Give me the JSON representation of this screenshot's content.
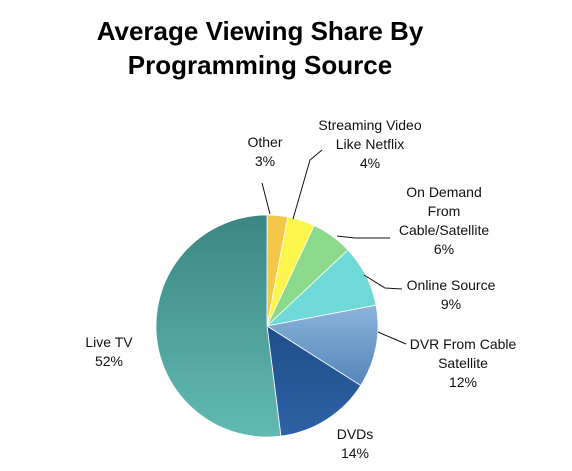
{
  "chart_data": {
    "type": "pie",
    "title": "Average Viewing Share By\nProgramming Source",
    "slices": [
      {
        "label": "Other",
        "value": 3,
        "display": "3%",
        "color": "#F3C74A",
        "label_lines": [
          "Other",
          "3%"
        ]
      },
      {
        "label": "Streaming Video Like Netflix",
        "value": 4,
        "display": "4%",
        "color": "#FCF54C",
        "label_lines": [
          "Streaming Video",
          "Like Netflix",
          "4%"
        ]
      },
      {
        "label": "On Demand From Cable/Satellite",
        "value": 6,
        "display": "6%",
        "color": "#8BD98A",
        "label_lines": [
          "On Demand",
          "From",
          "Cable/Satellite",
          "6%"
        ]
      },
      {
        "label": "Online Source",
        "value": 9,
        "display": "9%",
        "color": "#6ED9D6",
        "label_lines": [
          "Online Source",
          "9%"
        ]
      },
      {
        "label": "DVR From Cable Satellite",
        "value": 12,
        "display": "12%",
        "color": "#6A9CC8",
        "label_lines": [
          "DVR From Cable",
          "Satellite",
          "12%"
        ]
      },
      {
        "label": "DVDs",
        "value": 14,
        "display": "14%",
        "color": "#2A5C9A",
        "label_lines": [
          "DVDs",
          "14%"
        ]
      },
      {
        "label": "Live TV",
        "value": 52,
        "display": "52%",
        "color": "#4FA9A4",
        "label_lines": [
          "Live TV",
          "52%"
        ]
      }
    ],
    "start_angle": "12 o'clock",
    "direction": "clockwise",
    "legend": "none"
  }
}
